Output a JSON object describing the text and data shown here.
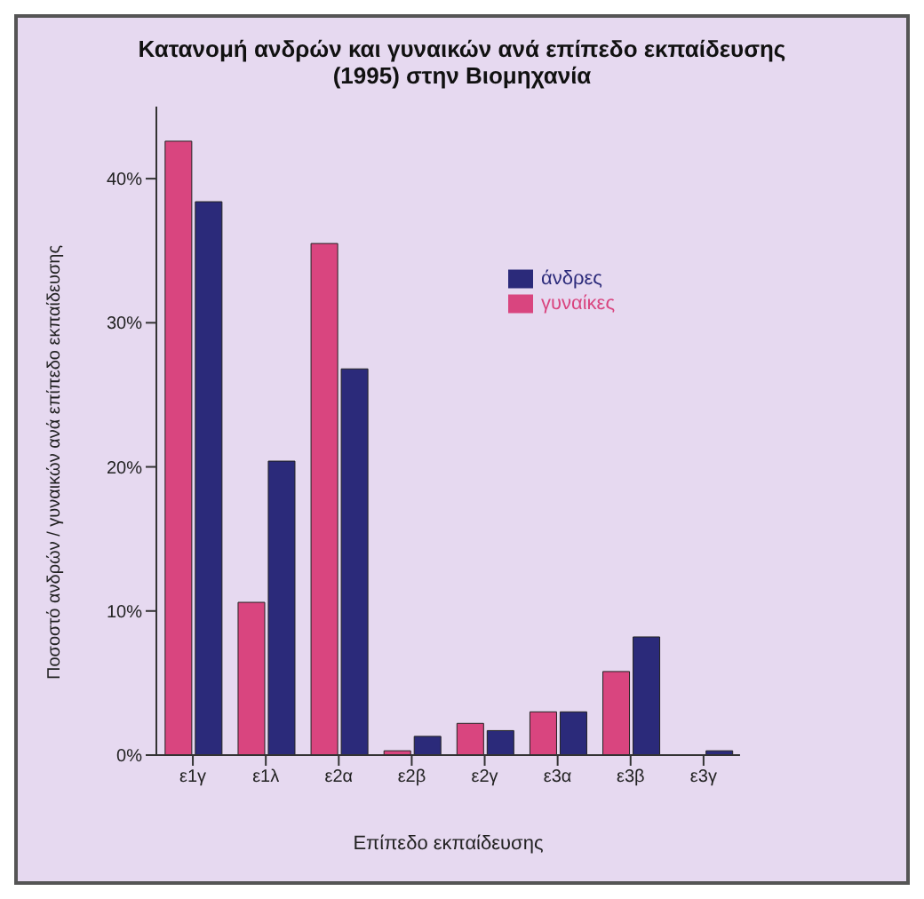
{
  "chart_data": {
    "type": "bar",
    "title": "Κατανομή ανδρών και γυναικών ανά επίπεδο εκπαίδευσης",
    "subtitle": "(1995) στην Βιομηχανία",
    "xlabel": "Επίπεδο εκπαίδευσης",
    "ylabel": "Ποσοστό ανδρών / γυναικών ανά επίπεδο εκπαίδευσης",
    "categories": [
      "ε1γ",
      "ε1λ",
      "ε2α",
      "ε2β",
      "ε2γ",
      "ε3α",
      "ε3β",
      "ε3γ"
    ],
    "series": [
      {
        "name": "γυναίκες",
        "color": "#d9457f",
        "values": [
          42.6,
          10.6,
          35.5,
          0.3,
          2.2,
          3.0,
          5.8,
          0
        ]
      },
      {
        "name": "άνδρες",
        "color": "#2b2a7a",
        "values": [
          38.4,
          20.4,
          26.8,
          1.3,
          1.7,
          3.0,
          8.2,
          0.3
        ]
      }
    ],
    "ylim": [
      0,
      45
    ],
    "yticks": [
      {
        "value": 0,
        "label": "0%"
      },
      {
        "value": 10,
        "label": "10%"
      },
      {
        "value": 20,
        "label": "20%"
      },
      {
        "value": 30,
        "label": "30%"
      },
      {
        "value": 40,
        "label": "40%"
      }
    ],
    "legend": "top right"
  }
}
